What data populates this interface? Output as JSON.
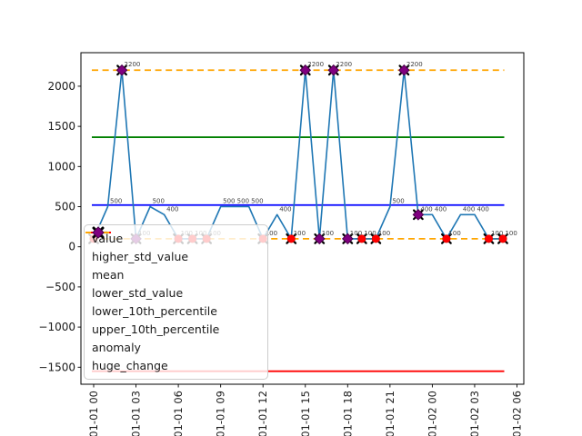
{
  "chart_data": {
    "type": "line",
    "title": "",
    "series_name": "value",
    "points": [
      {
        "x": "01-01 00",
        "value": 100
      },
      {
        "x": "01-01 01",
        "value": 500
      },
      {
        "x": "01-01 02",
        "value": 2200
      },
      {
        "x": "01-01 03",
        "value": 100
      },
      {
        "x": "01-01 04",
        "value": 500
      },
      {
        "x": "01-01 05",
        "value": 400
      },
      {
        "x": "01-01 06",
        "value": 100
      },
      {
        "x": "01-01 07",
        "value": 100
      },
      {
        "x": "01-01 08",
        "value": 100
      },
      {
        "x": "01-01 09",
        "value": 500
      },
      {
        "x": "01-01 10",
        "value": 500
      },
      {
        "x": "01-01 11",
        "value": 500
      },
      {
        "x": "01-01 12",
        "value": 100
      },
      {
        "x": "01-01 13",
        "value": 400
      },
      {
        "x": "01-01 14",
        "value": 100
      },
      {
        "x": "01-01 15",
        "value": 2200
      },
      {
        "x": "01-01 16",
        "value": 100
      },
      {
        "x": "01-01 17",
        "value": 2200
      },
      {
        "x": "01-01 18",
        "value": 100
      },
      {
        "x": "01-01 19",
        "value": 100
      },
      {
        "x": "01-01 20",
        "value": 100
      },
      {
        "x": "01-01 21",
        "value": 500
      },
      {
        "x": "01-01 22",
        "value": 2200
      },
      {
        "x": "01-01 23",
        "value": 400
      },
      {
        "x": "01-02 00",
        "value": 400
      },
      {
        "x": "01-02 01",
        "value": 100
      },
      {
        "x": "01-02 02",
        "value": 400
      },
      {
        "x": "01-02 03",
        "value": 400
      },
      {
        "x": "01-02 04",
        "value": 100
      },
      {
        "x": "01-02 05",
        "value": 100
      }
    ],
    "anomaly_points": [
      "01-01 00",
      "01-01 03",
      "01-01 06",
      "01-01 07",
      "01-01 08",
      "01-01 12",
      "01-01 14",
      "01-01 16",
      "01-01 18",
      "01-01 19",
      "01-01 20",
      "01-02 01",
      "01-02 04",
      "01-02 05"
    ],
    "huge_change_points": [
      "01-01 02",
      "01-01 03",
      "01-01 15",
      "01-01 16",
      "01-01 17",
      "01-01 18",
      "01-01 22",
      "01-01 23"
    ],
    "hlines": [
      {
        "name": "higher_std_value",
        "value": 1365,
        "color": "#008000",
        "style": "solid"
      },
      {
        "name": "mean",
        "value": 520,
        "color": "#0000ff",
        "style": "solid"
      },
      {
        "name": "lower_std_value",
        "value": -1550,
        "color": "#ff0000",
        "style": "solid"
      },
      {
        "name": "lower_10th_percentile",
        "value": 100,
        "color": "#ffa500",
        "style": "dashed"
      },
      {
        "name": "upper_10th_percentile",
        "value": 2200,
        "color": "#ffa500",
        "style": "dashed"
      }
    ],
    "x_ticks": [
      "01-01 00",
      "01-01 03",
      "01-01 06",
      "01-01 09",
      "01-01 12",
      "01-01 15",
      "01-01 18",
      "01-01 21",
      "01-02 00",
      "01-02 03",
      "01-02 06"
    ],
    "y_ticks": [
      {
        "label": "2000",
        "value": 2000
      },
      {
        "label": "1500",
        "value": 1500
      },
      {
        "label": "1000",
        "value": 1000
      },
      {
        "label": "500",
        "value": 500
      },
      {
        "label": "0",
        "value": 0
      },
      {
        "label": "−500",
        "value": -500
      },
      {
        "label": "−1000",
        "value": -1000
      },
      {
        "label": "−1500",
        "value": -1500
      }
    ],
    "ylim": [
      -1712,
      2417
    ],
    "grid": false,
    "legend_position": "center-left",
    "legend": [
      {
        "label": "value",
        "type": "line",
        "color": "#1f77b4"
      },
      {
        "label": "higher_std_value",
        "type": "line",
        "color": "#008000"
      },
      {
        "label": "mean",
        "type": "line",
        "color": "#0000ff"
      },
      {
        "label": "lower_std_value",
        "type": "line",
        "color": "#ff0000"
      },
      {
        "label": "lower_10th_percentile",
        "type": "dashed-line",
        "color": "#ffa500"
      },
      {
        "label": "upper_10th_percentile",
        "type": "dashed-line",
        "color": "#ffa500"
      },
      {
        "label": "anomaly",
        "type": "x-marker",
        "color": "#000000"
      },
      {
        "label": "huge_change",
        "type": "diamond-marker",
        "color": "#800080"
      }
    ],
    "colors": {
      "value_line": "#1f77b4",
      "anomaly_marker": "#ff0000",
      "anomaly_x": "#000000",
      "huge_change_marker": "#800080",
      "annotation_text": "#3d3d3d",
      "axis": "#000000"
    }
  }
}
